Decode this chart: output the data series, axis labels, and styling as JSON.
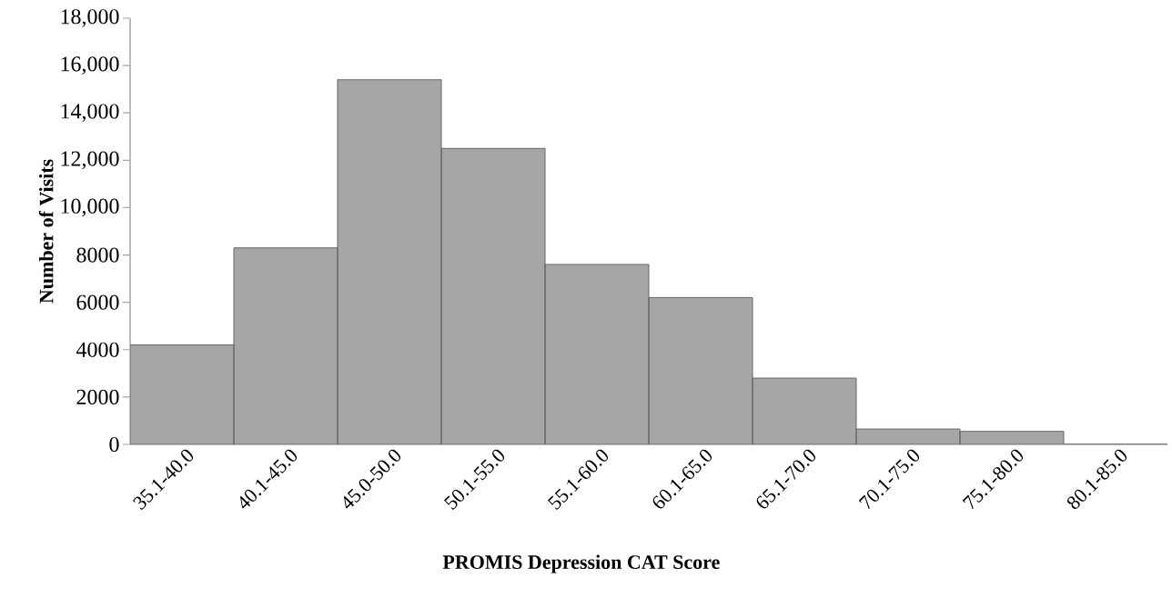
{
  "chart_data": {
    "type": "bar",
    "xlabel": "PROMIS Depression CAT Score",
    "ylabel": "Number of Visits",
    "categories": [
      "35.1-40.0",
      "40.1-45.0",
      "45.0-50.0",
      "50.1-55.0",
      "55.1-60.0",
      "60.1-65.0",
      "65.1-70.0",
      "70.1-75.0",
      "75.1-80.0",
      "80.1-85.0"
    ],
    "values": [
      4200,
      8300,
      15400,
      12500,
      7600,
      6200,
      2800,
      650,
      550,
      0
    ],
    "color": "#a6a6a6",
    "ylim": [
      0,
      18000
    ],
    "yticks": [
      0,
      2000,
      4000,
      6000,
      8000,
      {
        "value": 10000,
        "label": "10,000"
      },
      {
        "value": 12000,
        "label": "12,000"
      },
      {
        "value": 14000,
        "label": "14,000"
      },
      {
        "value": 16000,
        "label": "16,000"
      },
      {
        "value": 18000,
        "label": "18,000"
      }
    ]
  }
}
